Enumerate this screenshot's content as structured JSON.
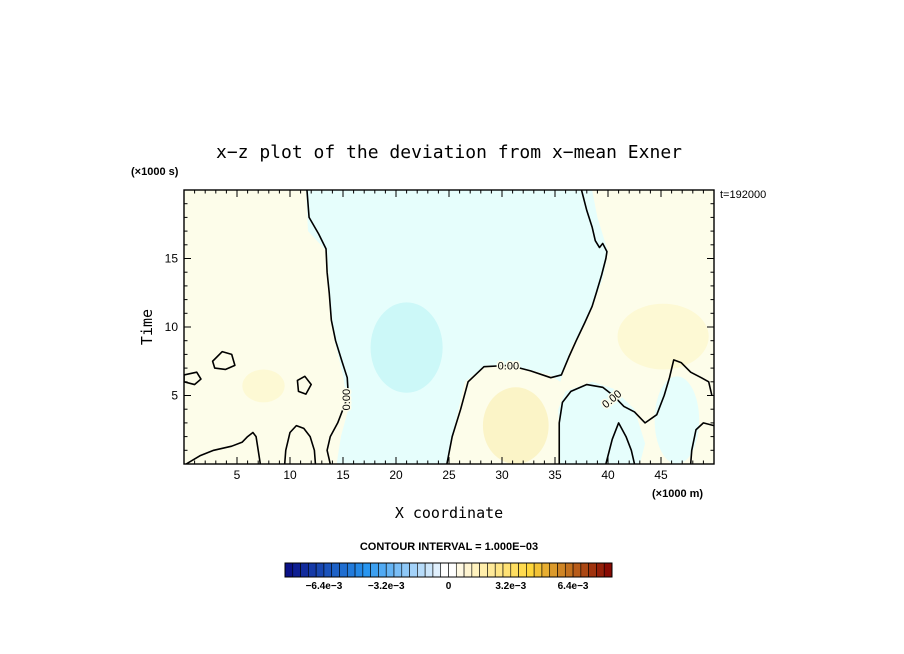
{
  "chart_data": {
    "type": "heatmap",
    "title": "x−z plot of the deviation from x−mean Exner",
    "xlabel": "X coordinate",
    "ylabel": "Time",
    "x_unit": "(×1000 m)",
    "y_unit": "(×1000 s)",
    "time_label": "t=192000",
    "xlim": [
      0,
      50
    ],
    "ylim": [
      0,
      20
    ],
    "xticks": [
      5,
      10,
      15,
      20,
      25,
      30,
      35,
      40,
      45
    ],
    "yticks": [
      5,
      10,
      15
    ],
    "contour_interval_text": "CONTOUR INTERVAL = 1.000E−03",
    "contour_label": "0.00",
    "colorbar": {
      "min": -0.0084,
      "max": 0.0084,
      "levels": 42,
      "tick_labels": [
        "−6.4e−3",
        "−3.2e−3",
        "0",
        "3.2e−3",
        "6.4e−3"
      ],
      "tick_values": [
        -0.0064,
        -0.0032,
        0,
        0.0032,
        0.0064
      ]
    },
    "regions": [
      {
        "name": "central-negative-lobe",
        "sign": "negative",
        "value": -0.0004,
        "poly": [
          [
            11.5,
            20
          ],
          [
            11.7,
            17
          ],
          [
            13.5,
            15.5
          ],
          [
            13.8,
            12
          ],
          [
            14.2,
            9
          ],
          [
            15,
            6.5
          ],
          [
            15.5,
            4
          ],
          [
            14.8,
            2
          ],
          [
            14.4,
            0
          ],
          [
            24.8,
            0
          ],
          [
            25.6,
            3
          ],
          [
            26.5,
            6
          ],
          [
            28.5,
            7.2
          ],
          [
            32,
            7
          ],
          [
            34.5,
            6.5
          ],
          [
            35.5,
            6
          ],
          [
            36.5,
            8.5
          ],
          [
            38,
            10.5
          ],
          [
            39.5,
            13.5
          ],
          [
            40,
            15.5
          ],
          [
            39,
            18
          ],
          [
            38.5,
            20
          ]
        ]
      },
      {
        "name": "central-minimum",
        "sign": "negative",
        "value": -0.0012,
        "ellipse": {
          "cx": 21,
          "cy": 8.5,
          "rx": 3.4,
          "ry": 3.3
        }
      },
      {
        "name": "lower-right-negative",
        "sign": "negative",
        "value": -0.0006,
        "poly": [
          [
            35.5,
            0
          ],
          [
            35.3,
            4
          ],
          [
            36,
            5.3
          ],
          [
            38.5,
            6
          ],
          [
            40.5,
            5.5
          ],
          [
            42.5,
            4
          ],
          [
            43.5,
            1.5
          ],
          [
            43,
            0
          ]
        ]
      },
      {
        "name": "right-negative",
        "sign": "negative",
        "value": -0.0008,
        "ellipse": {
          "cx": 46.5,
          "cy": 3.2,
          "rx": 2.1,
          "ry": 3.2
        }
      },
      {
        "name": "mid-positive",
        "sign": "positive",
        "value": 0.001,
        "ellipse": {
          "cx": 31.3,
          "cy": 2.8,
          "rx": 3.1,
          "ry": 2.8
        }
      },
      {
        "name": "upper-right-positive",
        "sign": "positive",
        "value": 0.0006,
        "ellipse": {
          "cx": 45.2,
          "cy": 9.3,
          "rx": 4.3,
          "ry": 2.4
        }
      },
      {
        "name": "left-positive",
        "sign": "positive",
        "value": 0.0005,
        "ellipse": {
          "cx": 7.5,
          "cy": 5.7,
          "rx": 2.0,
          "ry": 1.2
        }
      }
    ],
    "zero_contours": [
      {
        "points": [
          [
            11.6,
            20
          ],
          [
            11.8,
            18
          ],
          [
            12.7,
            16.8
          ],
          [
            13.4,
            15.7
          ],
          [
            13.5,
            14
          ],
          [
            13.7,
            12.5
          ],
          [
            13.9,
            10.5
          ],
          [
            14.3,
            9
          ],
          [
            14.9,
            7.5
          ],
          [
            15.4,
            6.3
          ],
          [
            15.5,
            5
          ],
          [
            15,
            4
          ],
          [
            14.5,
            3
          ],
          [
            13.8,
            2
          ],
          [
            13.5,
            1
          ],
          [
            13.8,
            0
          ]
        ]
      },
      {
        "points": [
          [
            0.2,
            0
          ],
          [
            1.5,
            0.6
          ],
          [
            2.8,
            1
          ],
          [
            4.5,
            1.3
          ],
          [
            5.5,
            1.6
          ],
          [
            6,
            2
          ],
          [
            6.5,
            2.3
          ],
          [
            6.8,
            2
          ],
          [
            7,
            1
          ],
          [
            7.2,
            0
          ]
        ]
      },
      {
        "points": [
          [
            9.5,
            0
          ],
          [
            9.6,
            1
          ],
          [
            10,
            2.3
          ],
          [
            10.6,
            2.8
          ],
          [
            11.3,
            2.6
          ],
          [
            11.9,
            2
          ],
          [
            12.3,
            1
          ],
          [
            12.4,
            0
          ]
        ]
      },
      {
        "points": [
          [
            24.8,
            0
          ],
          [
            25.3,
            2
          ],
          [
            26.1,
            4
          ],
          [
            26.8,
            6
          ],
          [
            28.3,
            7.1
          ],
          [
            30.7,
            7.2
          ],
          [
            32.7,
            6.8
          ],
          [
            34.6,
            6.3
          ],
          [
            35.6,
            6.5
          ],
          [
            36.3,
            7.8
          ],
          [
            37,
            9
          ],
          [
            37.8,
            10.3
          ],
          [
            38.5,
            11.5
          ],
          [
            38.9,
            12.5
          ],
          [
            39.4,
            13.8
          ],
          [
            39.8,
            15
          ],
          [
            39.9,
            15.5
          ],
          [
            39.5,
            16.1
          ],
          [
            39.2,
            15.8
          ],
          [
            38.8,
            16.3
          ],
          [
            38.5,
            17.3
          ],
          [
            38,
            18.5
          ],
          [
            37.5,
            20
          ]
        ]
      },
      {
        "points": [
          [
            35.4,
            0
          ],
          [
            35.4,
            3
          ],
          [
            35.7,
            4.5
          ],
          [
            36.5,
            5.3
          ],
          [
            38,
            5.8
          ],
          [
            39.5,
            5.6
          ],
          [
            40.5,
            5
          ],
          [
            41.5,
            4.2
          ],
          [
            42.5,
            3.8
          ],
          [
            43.5,
            3
          ],
          [
            44.6,
            3.6
          ],
          [
            45.3,
            5
          ],
          [
            45.8,
            6.3
          ],
          [
            46.2,
            7.6
          ],
          [
            46.9,
            7.4
          ],
          [
            47.8,
            6.7
          ],
          [
            48.8,
            6.3
          ],
          [
            49.5,
            6
          ],
          [
            49.8,
            5
          ]
        ]
      },
      {
        "points": [
          [
            39.8,
            0
          ],
          [
            40.4,
            1.8
          ],
          [
            41,
            3
          ],
          [
            41.7,
            2
          ],
          [
            42.2,
            1
          ],
          [
            42.5,
            0
          ]
        ]
      },
      {
        "points": [
          [
            47.8,
            0
          ],
          [
            47.9,
            1
          ],
          [
            48.3,
            2.5
          ],
          [
            49,
            3
          ],
          [
            50,
            2.8
          ]
        ]
      },
      {
        "points": [
          [
            0,
            6.5
          ],
          [
            1.2,
            6.7
          ],
          [
            1.6,
            6.2
          ],
          [
            1,
            5.8
          ],
          [
            0,
            6
          ]
        ],
        "closed": true
      },
      {
        "points": [
          [
            2.7,
            7.5
          ],
          [
            3.6,
            8.2
          ],
          [
            4.5,
            8
          ],
          [
            4.8,
            7.2
          ],
          [
            3.9,
            6.9
          ],
          [
            2.9,
            7
          ]
        ],
        "closed": true
      },
      {
        "points": [
          [
            10.7,
            6.1
          ],
          [
            11.4,
            6.4
          ],
          [
            12,
            5.8
          ],
          [
            11.5,
            5.1
          ],
          [
            10.8,
            5.3
          ]
        ],
        "closed": true
      }
    ]
  }
}
